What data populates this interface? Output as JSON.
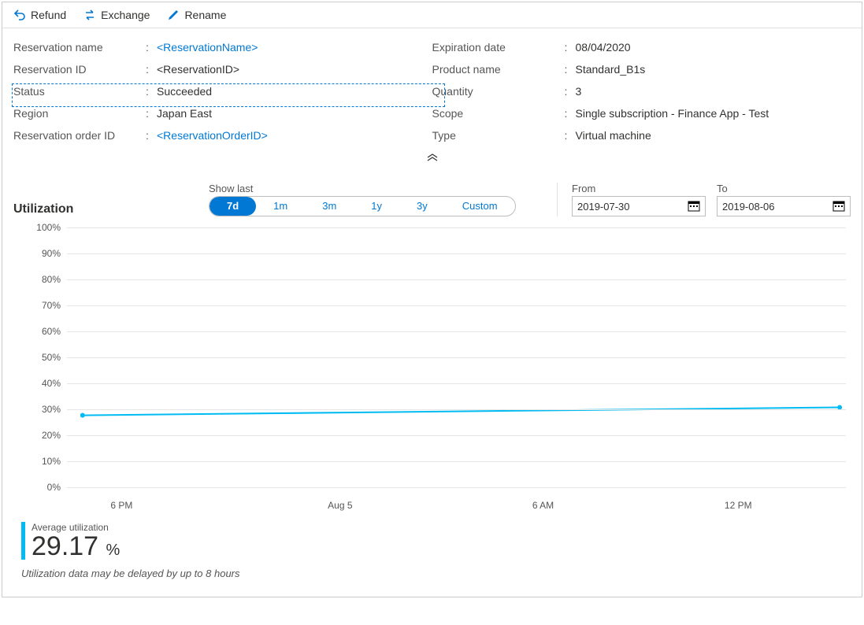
{
  "toolbar": {
    "refund": "Refund",
    "exchange": "Exchange",
    "rename": "Rename"
  },
  "details_left": [
    {
      "label": "Reservation name",
      "value": "<ReservationName>",
      "link": true
    },
    {
      "label": "Reservation ID",
      "value": "<ReservationID>",
      "link": false
    },
    {
      "label": "Status",
      "value": "Succeeded",
      "link": false
    },
    {
      "label": "Region",
      "value": "Japan East",
      "link": false
    },
    {
      "label": "Reservation order ID",
      "value": "<ReservationOrderID>",
      "link": true
    }
  ],
  "details_right": [
    {
      "label": "Expiration date",
      "value": "08/04/2020"
    },
    {
      "label": "Product name",
      "value": "Standard_B1s"
    },
    {
      "label": "Quantity",
      "value": "3"
    },
    {
      "label": "Scope",
      "value": "Single subscription - Finance App - Test"
    },
    {
      "label": "Type",
      "value": "Virtual machine"
    }
  ],
  "utilization": {
    "title": "Utilization",
    "show_last_label": "Show last",
    "segments": [
      "7d",
      "1m",
      "3m",
      "1y",
      "3y",
      "Custom"
    ],
    "active_segment": 0,
    "from_label": "From",
    "to_label": "To",
    "from_value": "2019-07-30",
    "to_value": "2019-08-06",
    "avg_label": "Average utilization",
    "avg_value": "29.17",
    "avg_unit": "%",
    "note": "Utilization data may be delayed by up to 8 hours"
  },
  "chart": {
    "type": "line",
    "line_color": "#00bcf2",
    "marker_color": "#00bcf2",
    "background_color": "#ffffff",
    "grid_color": "#e5e5e5",
    "ylim": [
      0,
      100
    ],
    "ytick_step": 10,
    "yticks": [
      "0%",
      "10%",
      "20%",
      "30%",
      "40%",
      "50%",
      "60%",
      "70%",
      "80%",
      "90%",
      "100%"
    ],
    "xticks": [
      {
        "label": "6 PM",
        "pos": 0.07
      },
      {
        "label": "Aug 5",
        "pos": 0.35
      },
      {
        "label": "6 AM",
        "pos": 0.61
      },
      {
        "label": "12 PM",
        "pos": 0.86
      }
    ],
    "series": {
      "x": [
        0.02,
        0.99
      ],
      "y": [
        29,
        32
      ]
    },
    "line_width": 2,
    "marker_radius": 3
  },
  "colors": {
    "link": "#0078d4",
    "accent": "#00bcf2",
    "text": "#323130",
    "muted": "#555555",
    "border": "#cccccc"
  }
}
